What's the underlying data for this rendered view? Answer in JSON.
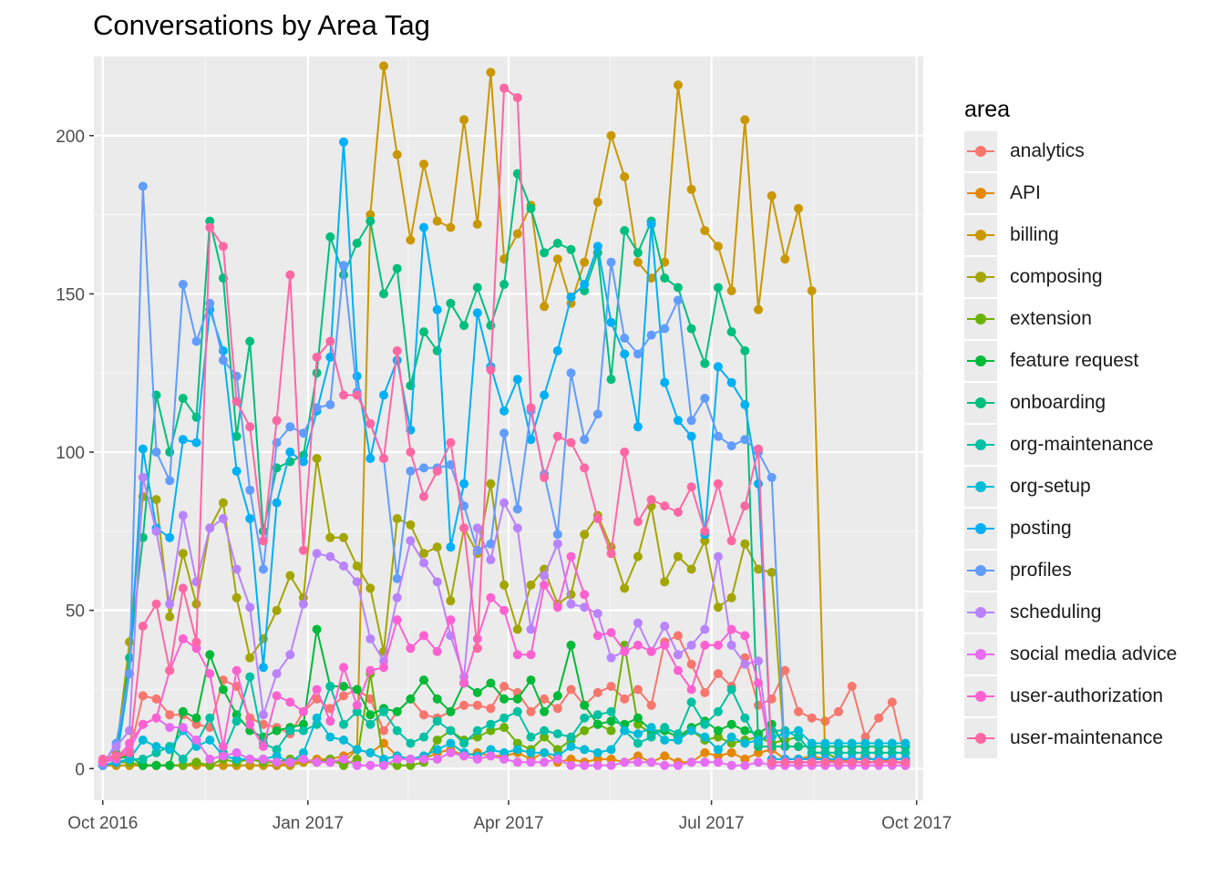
{
  "chart_data": {
    "type": "line",
    "title": "Conversations by Area Tag",
    "xlabel": "",
    "ylabel": "",
    "legend_title": "area",
    "legend_position": "right",
    "grid": true,
    "ylim": [
      -10,
      225
    ],
    "xlim": [
      "2016-09-27",
      "2017-10-04"
    ],
    "x_ticks": [
      {
        "date": "2016-10-01",
        "label": "Oct 2016"
      },
      {
        "date": "2017-01-01",
        "label": "Jan 2017"
      },
      {
        "date": "2017-04-01",
        "label": "Apr 2017"
      },
      {
        "date": "2017-07-01",
        "label": "Jul 2017"
      },
      {
        "date": "2017-10-01",
        "label": "Oct 2017"
      }
    ],
    "y_ticks": [
      0,
      50,
      100,
      150,
      200
    ],
    "x": [
      "2016-10-01",
      "2016-10-07",
      "2016-10-13",
      "2016-10-19",
      "2016-10-25",
      "2016-10-31",
      "2016-11-06",
      "2016-11-12",
      "2016-11-18",
      "2016-11-24",
      "2016-11-30",
      "2016-12-06",
      "2016-12-12",
      "2016-12-18",
      "2016-12-24",
      "2016-12-30",
      "2017-01-05",
      "2017-01-11",
      "2017-01-17",
      "2017-01-23",
      "2017-01-29",
      "2017-02-04",
      "2017-02-10",
      "2017-02-16",
      "2017-02-22",
      "2017-02-28",
      "2017-03-06",
      "2017-03-12",
      "2017-03-18",
      "2017-03-24",
      "2017-03-30",
      "2017-04-05",
      "2017-04-11",
      "2017-04-17",
      "2017-04-23",
      "2017-04-29",
      "2017-05-05",
      "2017-05-11",
      "2017-05-17",
      "2017-05-23",
      "2017-05-29",
      "2017-06-04",
      "2017-06-10",
      "2017-06-16",
      "2017-06-22",
      "2017-06-28",
      "2017-07-04",
      "2017-07-10",
      "2017-07-16",
      "2017-07-22",
      "2017-07-28",
      "2017-08-03",
      "2017-08-09",
      "2017-08-15",
      "2017-08-21",
      "2017-08-27",
      "2017-09-02",
      "2017-09-08",
      "2017-09-14",
      "2017-09-20",
      "2017-09-26"
    ],
    "series": [
      {
        "name": "analytics",
        "color": "#F8766D",
        "values": [
          2,
          3,
          5,
          23,
          22,
          17,
          17,
          14,
          13,
          28,
          26,
          16,
          14,
          13,
          11,
          18,
          22,
          19,
          23,
          25,
          22,
          12,
          18,
          22,
          17,
          16,
          18,
          20,
          20,
          19,
          26,
          24,
          18,
          22,
          19,
          25,
          20,
          24,
          26,
          22,
          25,
          20,
          40,
          42,
          33,
          24,
          30,
          26,
          35,
          20,
          22,
          31,
          18,
          16,
          15,
          18,
          26,
          10,
          16,
          21,
          3
        ]
      },
      {
        "name": "API",
        "color": "#E58700",
        "values": [
          1,
          1,
          1,
          1,
          1,
          1,
          1,
          1,
          1,
          1,
          1,
          1,
          1,
          1,
          2,
          2,
          3,
          3,
          4,
          6,
          5,
          8,
          4,
          3,
          3,
          5,
          6,
          4,
          5,
          4,
          4,
          5,
          3,
          5,
          2,
          3,
          2,
          3,
          3,
          2,
          4,
          2,
          4,
          2,
          2,
          5,
          4,
          5,
          3,
          5,
          6,
          3,
          3,
          4,
          3,
          3,
          2,
          4,
          2,
          3,
          1
        ]
      },
      {
        "name": "billing",
        "color": "#C99800",
        "values": [
          1,
          1,
          1,
          1,
          1,
          1,
          1,
          1,
          1,
          1,
          1,
          1,
          1,
          1,
          1,
          2,
          2,
          2,
          2,
          6,
          175,
          222,
          194,
          167,
          191,
          173,
          171,
          205,
          172,
          220,
          161,
          169,
          178,
          146,
          161,
          147,
          160,
          179,
          200,
          187,
          160,
          155,
          160,
          216,
          183,
          170,
          165,
          151,
          205,
          145,
          181,
          161,
          177,
          151,
          3,
          2,
          2,
          2,
          2,
          2,
          2
        ]
      },
      {
        "name": "composing",
        "color": "#A3A500",
        "values": [
          2,
          5,
          40,
          86,
          85,
          48,
          68,
          52,
          76,
          84,
          54,
          35,
          41,
          50,
          61,
          54,
          98,
          73,
          73,
          64,
          57,
          37,
          79,
          77,
          68,
          70,
          53,
          76,
          68,
          90,
          58,
          44,
          58,
          63,
          52,
          55,
          74,
          80,
          70,
          57,
          67,
          83,
          59,
          67,
          63,
          72,
          51,
          54,
          71,
          63,
          62,
          3,
          3,
          3,
          3,
          3,
          3,
          3,
          3,
          3,
          3
        ]
      },
      {
        "name": "extension",
        "color": "#6BB100",
        "values": [
          1,
          2,
          2,
          1,
          1,
          1,
          1,
          2,
          1,
          3,
          2,
          3,
          2,
          2,
          3,
          3,
          2,
          3,
          1,
          3,
          30,
          2,
          1,
          1,
          2,
          9,
          12,
          9,
          10,
          12,
          13,
          8,
          6,
          10,
          6,
          9,
          12,
          14,
          12,
          39,
          14,
          11,
          12,
          10,
          12,
          9,
          10,
          8,
          9,
          10,
          8,
          9,
          10,
          5,
          5,
          3,
          3,
          3,
          3,
          3,
          3
        ]
      },
      {
        "name": "feature request",
        "color": "#00BA38",
        "values": [
          2,
          3,
          4,
          1,
          1,
          1,
          18,
          16,
          36,
          25,
          17,
          12,
          10,
          12,
          13,
          14,
          44,
          26,
          26,
          25,
          17,
          19,
          18,
          22,
          28,
          22,
          18,
          27,
          24,
          27,
          22,
          22,
          28,
          18,
          23,
          39,
          20,
          14,
          15,
          14,
          16,
          12,
          12,
          10,
          13,
          15,
          12,
          14,
          12,
          11,
          14,
          7,
          7,
          7,
          7,
          7,
          7,
          7,
          7,
          7,
          7
        ]
      },
      {
        "name": "onboarding",
        "color": "#00BF7D",
        "values": [
          2,
          3,
          35,
          73,
          118,
          100,
          117,
          111,
          173,
          155,
          105,
          135,
          75,
          95,
          97,
          99,
          125,
          168,
          156,
          166,
          173,
          150,
          158,
          121,
          138,
          132,
          147,
          140,
          152,
          140,
          153,
          188,
          177,
          163,
          166,
          164,
          151,
          163,
          123,
          170,
          163,
          173,
          155,
          152,
          139,
          128,
          152,
          138,
          132,
          7,
          7,
          7,
          7,
          7,
          7,
          7,
          7,
          7,
          7,
          7,
          7
        ]
      },
      {
        "name": "org-maintenance",
        "color": "#00C1A3",
        "values": [
          1,
          2,
          3,
          3,
          5,
          7,
          3,
          8,
          16,
          5,
          15,
          29,
          8,
          6,
          12,
          12,
          14,
          26,
          14,
          18,
          14,
          18,
          12,
          8,
          10,
          15,
          12,
          8,
          12,
          14,
          16,
          18,
          10,
          12,
          11,
          10,
          16,
          17,
          18,
          12,
          8,
          10,
          13,
          11,
          21,
          14,
          18,
          25,
          16,
          8,
          12,
          12,
          10,
          5,
          5,
          5,
          5,
          5,
          5,
          5,
          5
        ]
      },
      {
        "name": "org-setup",
        "color": "#00BCD8",
        "values": [
          1,
          2,
          3,
          9,
          7,
          6,
          12,
          7,
          9,
          4,
          3,
          3,
          3,
          4,
          2,
          5,
          16,
          10,
          9,
          6,
          5,
          3,
          4,
          3,
          4,
          6,
          8,
          5,
          4,
          6,
          5,
          6,
          5,
          5,
          4,
          7,
          6,
          5,
          6,
          12,
          11,
          13,
          9,
          9,
          12,
          10,
          6,
          10,
          8,
          9,
          10,
          11,
          12,
          8,
          8,
          8,
          8,
          8,
          8,
          8,
          8
        ]
      },
      {
        "name": "posting",
        "color": "#00B0F6",
        "values": [
          1,
          2,
          30,
          101,
          76,
          73,
          104,
          103,
          145,
          132,
          94,
          79,
          32,
          84,
          100,
          97,
          113,
          130,
          198,
          124,
          98,
          118,
          129,
          107,
          171,
          145,
          70,
          90,
          144,
          127,
          113,
          123,
          104,
          118,
          132,
          149,
          153,
          165,
          141,
          131,
          108,
          172,
          122,
          110,
          105,
          74,
          127,
          122,
          115,
          90,
          3,
          3,
          3,
          3,
          3,
          3,
          3,
          3,
          3,
          3,
          3
        ]
      },
      {
        "name": "profiles",
        "color": "#619CFF",
        "values": [
          1,
          8,
          30,
          184,
          100,
          91,
          153,
          135,
          147,
          129,
          124,
          88,
          63,
          103,
          108,
          106,
          114,
          115,
          159,
          119,
          109,
          98,
          60,
          94,
          95,
          95,
          96,
          83,
          69,
          71,
          106,
          82,
          113,
          93,
          74,
          125,
          104,
          112,
          160,
          136,
          131,
          137,
          139,
          148,
          110,
          117,
          105,
          102,
          104,
          100,
          92,
          2,
          2,
          2,
          2,
          2,
          2,
          2,
          2,
          2,
          2
        ]
      },
      {
        "name": "scheduling",
        "color": "#B983FF",
        "values": [
          2,
          7,
          12,
          92,
          75,
          52,
          80,
          59,
          76,
          79,
          63,
          51,
          17,
          30,
          36,
          52,
          68,
          67,
          64,
          59,
          41,
          34,
          54,
          72,
          65,
          59,
          42,
          29,
          76,
          66,
          84,
          76,
          44,
          61,
          71,
          52,
          51,
          49,
          35,
          37,
          46,
          37,
          45,
          36,
          39,
          44,
          67,
          39,
          33,
          34,
          2,
          2,
          2,
          2,
          2,
          2,
          2,
          2,
          2,
          2,
          2
        ]
      },
      {
        "name": "social media advice",
        "color": "#E76BF3",
        "values": [
          2,
          4,
          6,
          14,
          16,
          13,
          13,
          9,
          3,
          4,
          5,
          3,
          3,
          2,
          2,
          3,
          2,
          2,
          3,
          1,
          1,
          1,
          3,
          3,
          3,
          3,
          5,
          4,
          3,
          4,
          3,
          2,
          2,
          2,
          3,
          1,
          1,
          1,
          1,
          2,
          2,
          2,
          1,
          1,
          2,
          2,
          2,
          1,
          1,
          2,
          1,
          1,
          1,
          1,
          1,
          1,
          1,
          1,
          1,
          1,
          1
        ]
      },
      {
        "name": "user-authorization",
        "color": "#FD61D1",
        "values": [
          2,
          3,
          8,
          14,
          16,
          31,
          41,
          38,
          30,
          7,
          31,
          14,
          7,
          23,
          21,
          18,
          25,
          15,
          32,
          20,
          31,
          32,
          47,
          38,
          42,
          37,
          47,
          27,
          41,
          54,
          50,
          36,
          36,
          58,
          51,
          67,
          55,
          42,
          43,
          37,
          39,
          37,
          39,
          31,
          25,
          39,
          39,
          44,
          42,
          27,
          2,
          2,
          2,
          2,
          2,
          2,
          2,
          2,
          2,
          2,
          2
        ]
      },
      {
        "name": "user-maintenance",
        "color": "#FF67A4",
        "values": [
          3,
          4,
          5,
          45,
          52,
          31,
          57,
          40,
          171,
          165,
          116,
          108,
          72,
          110,
          156,
          69,
          130,
          135,
          118,
          118,
          109,
          98,
          132,
          100,
          86,
          94,
          103,
          76,
          38,
          126,
          215,
          212,
          114,
          92,
          105,
          103,
          95,
          79,
          68,
          100,
          78,
          85,
          83,
          81,
          89,
          75,
          90,
          72,
          83,
          101,
          2,
          2,
          2,
          2,
          2,
          2,
          2,
          2,
          2,
          2,
          2
        ]
      }
    ]
  }
}
